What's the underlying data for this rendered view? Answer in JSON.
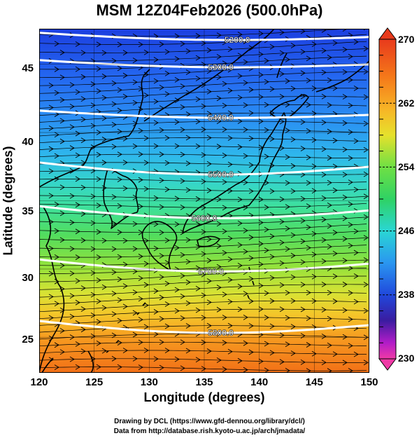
{
  "title": "MSM 12Z04Feb2026 (500.0hPa)",
  "map": {
    "x_axis_label": "Longitude (degrees)",
    "y_axis_label": "Latitude  (degrees)",
    "lon_range": [
      120,
      150
    ],
    "lat_range": [
      22.4,
      47.6
    ],
    "x_ticks": [
      "120",
      "125",
      "130",
      "135",
      "140",
      "145",
      "150"
    ],
    "y_ticks": [
      "25",
      "30",
      "35",
      "40",
      "45"
    ],
    "contour_labels": [
      "5200.0",
      "5300.0",
      "5400.0",
      "5500.0",
      "5600.0",
      "5700.0",
      "5800.0"
    ],
    "color_variable": "temperature",
    "colorbar_labels": [
      "270",
      "262",
      "254",
      "246",
      "238",
      "230"
    ],
    "colorbar_range": [
      230,
      270
    ],
    "wind_direction": "west-to-east streamlines"
  },
  "footer": {
    "line1": "Drawing by DCL (https://www.gfd-dennou.org/library/dcl/)",
    "line2": "Data from http://database.rish.kyoto-u.ac.jp/arch/jmadata/"
  },
  "colors": {
    "cold": "#1c3fe0",
    "mid": "#3ee09a",
    "warm": "#f27017",
    "contour": "#ffffff",
    "coastline": "#000000"
  }
}
